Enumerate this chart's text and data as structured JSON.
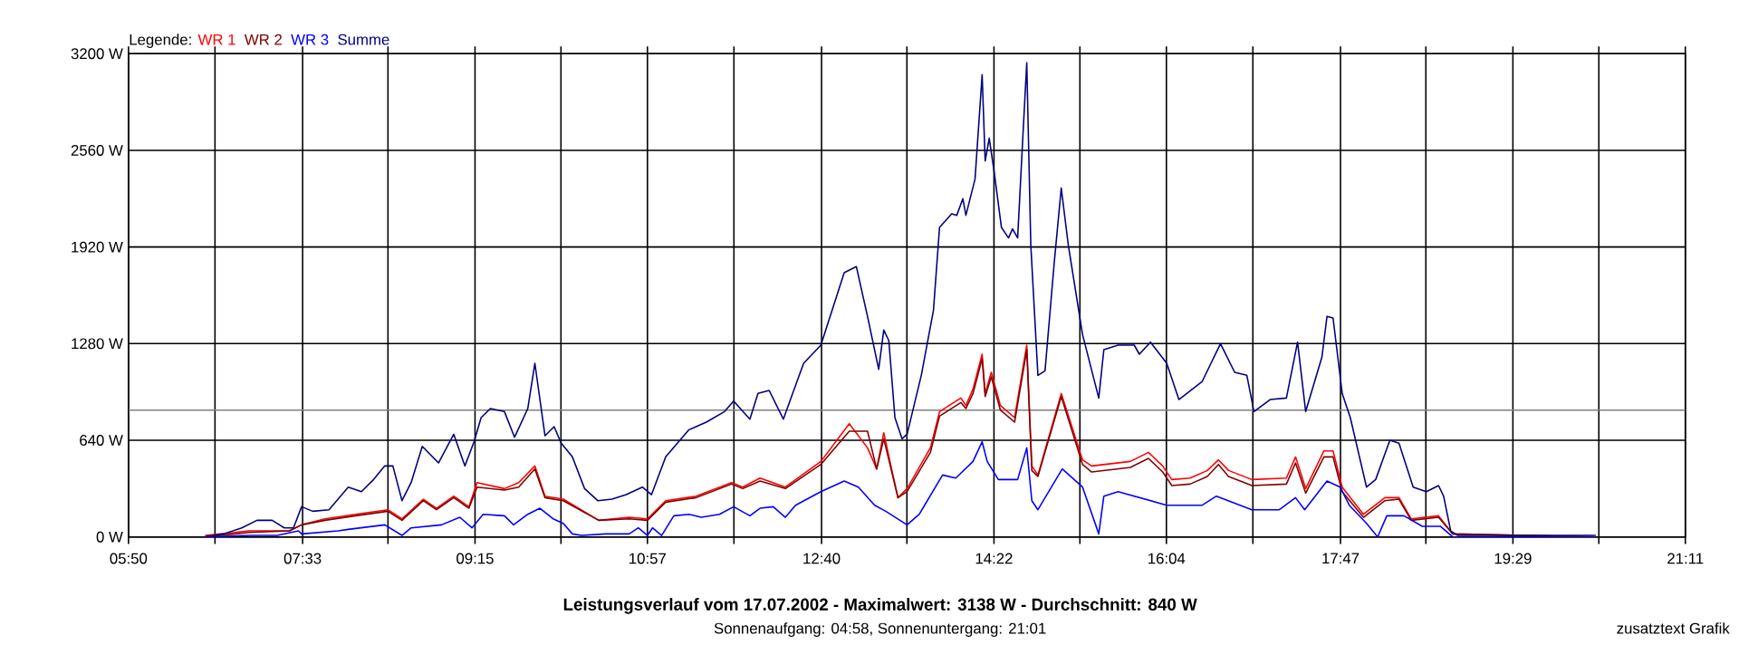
{
  "chart_data": {
    "type": "line",
    "title": "Leistungsverlauf vom 17.07.2002 - Maximalwert: 3138 W - Durchschnitt: 840 W",
    "subtitle": "Sonnenaufgang: 04:58, Sonnenuntergang: 21:01",
    "legend_title": "Legende:",
    "legend": "top left",
    "grid": true,
    "annotations": [
      "zusatztext Grafik"
    ],
    "xlim": [
      5.8333,
      21.1833
    ],
    "ylim": [
      0,
      3200
    ],
    "xticks": [
      {
        "value": 5.8333,
        "label": "05:50"
      },
      {
        "value": 6.6861,
        "label": null
      },
      {
        "value": 7.55,
        "label": "07:33"
      },
      {
        "value": 8.3917,
        "label": null
      },
      {
        "value": 9.25,
        "label": "09:15"
      },
      {
        "value": 10.0972,
        "label": null
      },
      {
        "value": 10.95,
        "label": "10:57"
      },
      {
        "value": 11.8028,
        "label": null
      },
      {
        "value": 12.6667,
        "label": "12:40"
      },
      {
        "value": 13.5083,
        "label": null
      },
      {
        "value": 14.3667,
        "label": "14:22"
      },
      {
        "value": 15.2139,
        "label": null
      },
      {
        "value": 16.0667,
        "label": "16:04"
      },
      {
        "value": 16.9194,
        "label": null
      },
      {
        "value": 17.7833,
        "label": "17:47"
      },
      {
        "value": 18.625,
        "label": null
      },
      {
        "value": 19.4833,
        "label": "19:29"
      },
      {
        "value": 20.3306,
        "label": null
      },
      {
        "value": 21.1833,
        "label": "21:11"
      }
    ],
    "yticks": [
      {
        "value": 0,
        "label": "0 W"
      },
      {
        "value": 640,
        "label": "640 W"
      },
      {
        "value": 1280,
        "label": "1280 W"
      },
      {
        "value": 1920,
        "label": "1920 W"
      },
      {
        "value": 2560,
        "label": "2560 W"
      },
      {
        "value": 3200,
        "label": "3200 W"
      }
    ],
    "ref_lines": [
      {
        "axis": "y",
        "value": 840,
        "label": null,
        "color": "#808080"
      }
    ],
    "series": [
      {
        "name": "WR 1",
        "color": "#ff0000",
        "x": [
          6.59,
          7.02,
          7.42,
          7.54,
          7.77,
          8.07,
          8.39,
          8.53,
          8.74,
          8.87,
          9.04,
          9.19,
          9.27,
          9.54,
          9.68,
          9.84,
          9.94,
          10.12,
          10.47,
          10.77,
          10.95,
          11.13,
          11.43,
          11.78,
          11.89,
          12.06,
          12.31,
          12.66,
          12.94,
          13.12,
          13.21,
          13.28,
          13.37,
          13.42,
          13.51,
          13.74,
          13.83,
          14.04,
          14.09,
          14.16,
          14.25,
          14.28,
          14.34,
          14.43,
          14.57,
          14.69,
          14.74,
          14.8,
          15.03,
          15.24,
          15.33,
          15.71,
          15.89,
          16.03,
          16.12,
          16.3,
          16.47,
          16.58,
          16.68,
          16.91,
          17.25,
          17.34,
          17.44,
          17.62,
          17.71,
          17.8,
          18.01,
          18.22,
          18.36,
          18.48,
          18.75,
          18.89,
          20.3
        ],
        "values": [
          10,
          40,
          40,
          80,
          120,
          150,
          180,
          120,
          250,
          190,
          270,
          200,
          360,
          320,
          360,
          470,
          270,
          250,
          110,
          130,
          120,
          240,
          270,
          360,
          330,
          390,
          330,
          500,
          750,
          590,
          450,
          690,
          410,
          260,
          320,
          590,
          830,
          920,
          870,
          980,
          1210,
          950,
          1090,
          870,
          790,
          1270,
          470,
          410,
          950,
          510,
          470,
          500,
          560,
          470,
          380,
          390,
          440,
          510,
          440,
          380,
          390,
          530,
          320,
          570,
          570,
          330,
          150,
          260,
          260,
          120,
          140,
          20,
          0
        ]
      },
      {
        "name": "WR 2",
        "color": "#800000",
        "x": [
          6.59,
          7.02,
          7.42,
          7.54,
          7.77,
          8.07,
          8.39,
          8.53,
          8.74,
          8.87,
          9.04,
          9.19,
          9.27,
          9.54,
          9.68,
          9.84,
          9.94,
          10.12,
          10.47,
          10.77,
          10.95,
          11.13,
          11.43,
          11.78,
          11.89,
          12.06,
          12.31,
          12.66,
          12.94,
          13.12,
          13.21,
          13.28,
          13.37,
          13.42,
          13.51,
          13.74,
          13.83,
          14.04,
          14.09,
          14.16,
          14.25,
          14.28,
          14.34,
          14.43,
          14.57,
          14.69,
          14.74,
          14.8,
          15.03,
          15.24,
          15.33,
          15.71,
          15.89,
          16.03,
          16.12,
          16.3,
          16.47,
          16.58,
          16.68,
          16.91,
          17.25,
          17.34,
          17.44,
          17.62,
          17.71,
          17.8,
          18.01,
          18.22,
          18.36,
          18.48,
          18.75,
          18.89,
          20.3
        ],
        "values": [
          0,
          30,
          40,
          80,
          110,
          140,
          170,
          110,
          240,
          180,
          260,
          190,
          330,
          310,
          330,
          450,
          260,
          240,
          110,
          120,
          110,
          230,
          260,
          350,
          320,
          370,
          320,
          480,
          700,
          700,
          450,
          650,
          400,
          260,
          300,
          560,
          800,
          890,
          850,
          950,
          1180,
          930,
          1060,
          840,
          760,
          1240,
          440,
          400,
          930,
          480,
          430,
          460,
          520,
          430,
          340,
          350,
          400,
          480,
          400,
          340,
          350,
          490,
          290,
          530,
          530,
          300,
          130,
          240,
          250,
          110,
          130,
          20,
          0
        ]
      },
      {
        "name": "WR 3",
        "color": "#0000ff",
        "x": [
          6.59,
          7.02,
          7.3,
          7.51,
          7.54,
          7.9,
          8.0,
          8.36,
          8.53,
          8.62,
          8.92,
          9.1,
          9.22,
          9.33,
          9.54,
          9.63,
          9.77,
          9.89,
          10.02,
          10.12,
          10.21,
          10.3,
          10.54,
          10.77,
          10.86,
          10.95,
          11.0,
          11.09,
          11.21,
          11.36,
          11.48,
          11.66,
          11.8,
          11.96,
          12.06,
          12.19,
          12.31,
          12.41,
          12.66,
          12.89,
          13.03,
          13.19,
          13.3,
          13.37,
          13.51,
          13.63,
          13.86,
          13.99,
          14.16,
          14.25,
          14.3,
          14.41,
          14.6,
          14.69,
          14.74,
          14.8,
          15.04,
          15.24,
          15.4,
          15.45,
          15.59,
          16.07,
          16.42,
          16.56,
          16.91,
          17.18,
          17.34,
          17.43,
          17.65,
          17.78,
          17.87,
          18.04,
          18.15,
          18.24,
          18.41,
          18.59,
          18.77,
          18.89,
          20.3
        ],
        "values": [
          0,
          10,
          10,
          40,
          20,
          40,
          50,
          80,
          10,
          60,
          80,
          130,
          60,
          150,
          140,
          80,
          150,
          190,
          120,
          90,
          20,
          10,
          20,
          20,
          60,
          10,
          60,
          10,
          140,
          150,
          130,
          150,
          200,
          140,
          190,
          200,
          130,
          210,
          300,
          370,
          330,
          210,
          170,
          140,
          80,
          150,
          410,
          390,
          500,
          630,
          500,
          380,
          380,
          590,
          240,
          180,
          450,
          330,
          20,
          270,
          300,
          210,
          210,
          270,
          180,
          180,
          260,
          180,
          370,
          330,
          210,
          90,
          0,
          140,
          140,
          70,
          70,
          0,
          0
        ]
      },
      {
        "name": "Summe",
        "color": "#000080",
        "x": [
          6.57,
          6.77,
          6.95,
          7.1,
          7.25,
          7.37,
          7.46,
          7.54,
          7.65,
          7.81,
          8.0,
          8.13,
          8.25,
          8.36,
          8.44,
          8.53,
          8.62,
          8.73,
          8.89,
          9.04,
          9.15,
          9.24,
          9.31,
          9.4,
          9.54,
          9.64,
          9.77,
          9.84,
          9.94,
          10.03,
          10.1,
          10.21,
          10.33,
          10.46,
          10.6,
          10.74,
          10.9,
          10.99,
          11.13,
          11.36,
          11.53,
          11.71,
          11.8,
          11.96,
          12.04,
          12.15,
          12.29,
          12.36,
          12.49,
          12.66,
          12.89,
          13.01,
          13.12,
          13.23,
          13.28,
          13.33,
          13.39,
          13.46,
          13.51,
          13.65,
          13.77,
          13.83,
          13.95,
          14.0,
          14.06,
          14.09,
          14.18,
          14.25,
          14.28,
          14.32,
          14.37,
          14.44,
          14.51,
          14.55,
          14.6,
          14.66,
          14.69,
          14.73,
          14.8,
          14.87,
          14.96,
          15.03,
          15.1,
          15.24,
          15.4,
          15.45,
          15.59,
          15.75,
          15.8,
          15.91,
          16.07,
          16.19,
          16.42,
          16.6,
          16.74,
          16.86,
          16.93,
          17.09,
          17.25,
          17.36,
          17.44,
          17.6,
          17.65,
          17.71,
          17.8,
          17.88,
          18.04,
          18.13,
          18.27,
          18.36,
          18.5,
          18.63,
          18.75,
          18.8,
          18.87,
          18.94,
          19.6,
          20.3
        ],
        "values": [
          0,
          20,
          60,
          110,
          110,
          60,
          60,
          200,
          170,
          180,
          330,
          300,
          380,
          470,
          470,
          240,
          360,
          600,
          490,
          680,
          470,
          630,
          790,
          850,
          830,
          660,
          850,
          1150,
          670,
          730,
          620,
          530,
          320,
          240,
          250,
          280,
          330,
          280,
          530,
          710,
          760,
          830,
          900,
          780,
          950,
          970,
          780,
          910,
          1150,
          1270,
          1750,
          1790,
          1460,
          1110,
          1370,
          1300,
          790,
          650,
          680,
          1070,
          1500,
          2050,
          2140,
          2130,
          2240,
          2130,
          2370,
          3060,
          2490,
          2640,
          2410,
          2050,
          1980,
          2040,
          1980,
          2760,
          3140,
          1930,
          1070,
          1100,
          1810,
          2310,
          1930,
          1340,
          920,
          1240,
          1270,
          1270,
          1210,
          1290,
          1150,
          910,
          1030,
          1280,
          1090,
          1070,
          830,
          910,
          920,
          1290,
          830,
          1190,
          1460,
          1450,
          950,
          790,
          330,
          380,
          640,
          620,
          330,
          300,
          340,
          270,
          40,
          10,
          10,
          10
        ]
      }
    ]
  }
}
